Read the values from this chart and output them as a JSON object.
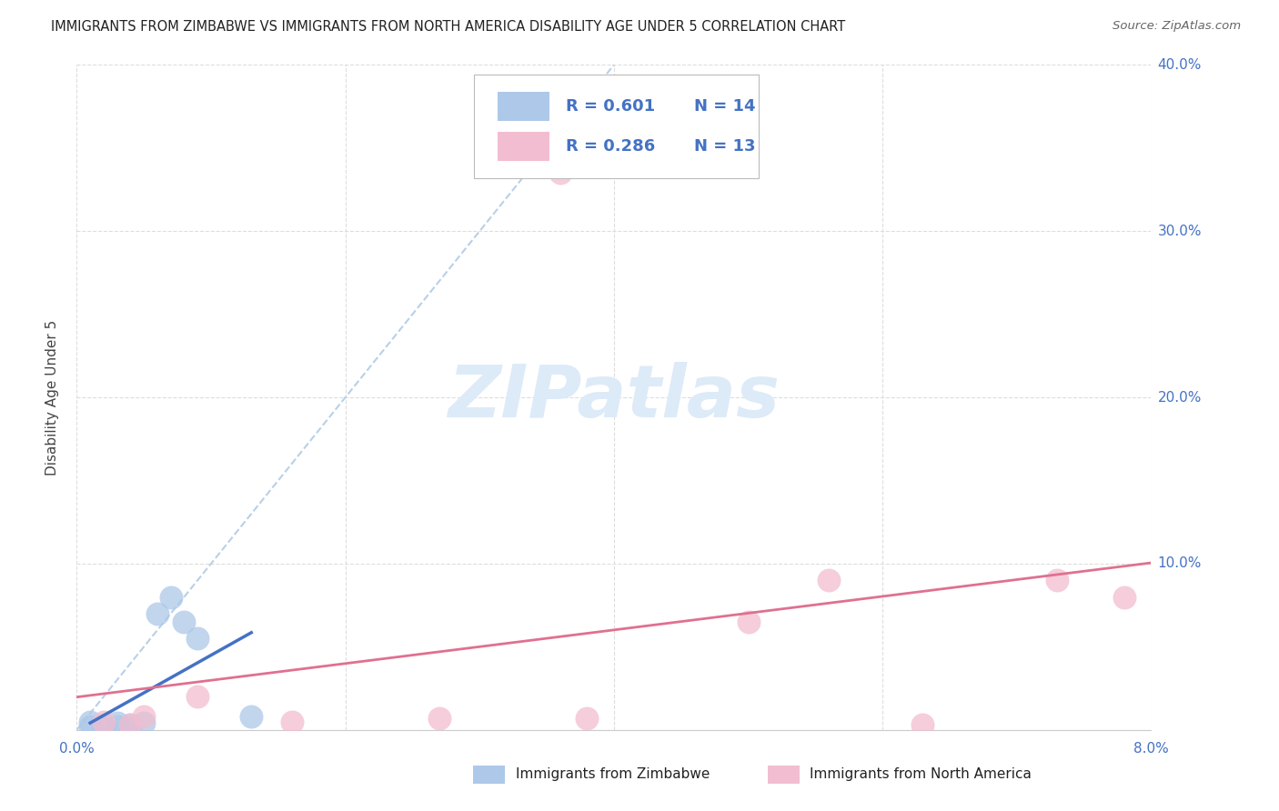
{
  "title": "IMMIGRANTS FROM ZIMBABWE VS IMMIGRANTS FROM NORTH AMERICA DISABILITY AGE UNDER 5 CORRELATION CHART",
  "source": "Source: ZipAtlas.com",
  "ylabel": "Disability Age Under 5",
  "label_series1": "Immigrants from Zimbabwe",
  "label_series2": "Immigrants from North America",
  "r1": 0.601,
  "n1": 14,
  "r2": 0.286,
  "n2": 13,
  "color1": "#adc8e8",
  "color2": "#f2bdd0",
  "trendline1_color": "#4472c4",
  "trendline2_color": "#e07090",
  "dashed_line_color": "#b8d0e8",
  "tick_color": "#4472c4",
  "ylabel_color": "#444444",
  "xlim": [
    0.0,
    0.08
  ],
  "ylim": [
    0.0,
    0.4
  ],
  "xticks": [
    0.0,
    0.02,
    0.04,
    0.06,
    0.08
  ],
  "yticks": [
    0.0,
    0.1,
    0.2,
    0.3,
    0.4
  ],
  "zimbabwe_x": [
    0.001,
    0.001,
    0.002,
    0.002,
    0.003,
    0.003,
    0.004,
    0.004,
    0.005,
    0.006,
    0.007,
    0.008,
    0.009,
    0.013
  ],
  "zimbabwe_y": [
    0.002,
    0.005,
    0.001,
    0.003,
    0.002,
    0.004,
    0.001,
    0.003,
    0.004,
    0.07,
    0.08,
    0.065,
    0.055,
    0.008
  ],
  "north_america_x": [
    0.002,
    0.004,
    0.005,
    0.009,
    0.016,
    0.027,
    0.036,
    0.038,
    0.05,
    0.056,
    0.063,
    0.073,
    0.078
  ],
  "north_america_y": [
    0.005,
    0.003,
    0.008,
    0.02,
    0.005,
    0.007,
    0.335,
    0.007,
    0.065,
    0.09,
    0.003,
    0.09,
    0.08
  ],
  "watermark_text": "ZIPatlas",
  "watermark_color": "#ddeaf8",
  "background_color": "#ffffff",
  "grid_color": "#dddddd"
}
